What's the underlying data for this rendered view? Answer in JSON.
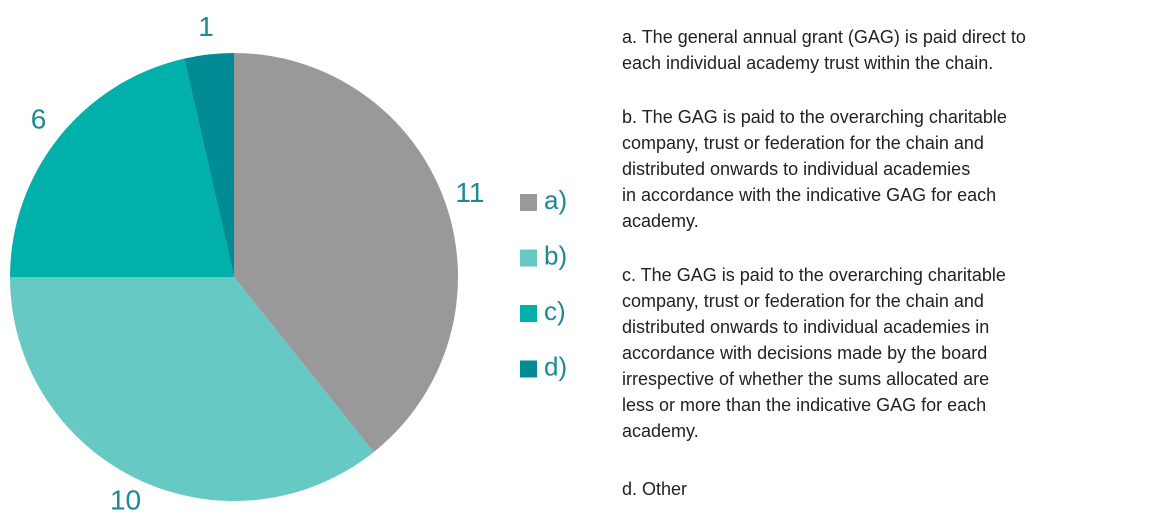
{
  "chart_data": {
    "type": "pie",
    "categories": [
      "a)",
      "b)",
      "c)",
      "d)"
    ],
    "values": [
      11,
      10,
      6,
      1
    ],
    "colors": [
      "#999999",
      "#66c9c4",
      "#00b0aa",
      "#008b95"
    ],
    "legend": "right"
  },
  "notes": [
    [
      "a. The general annual grant (GAG) is paid direct to",
      "each individual academy trust within the chain."
    ],
    [
      "b. The GAG is paid to the overarching charitable",
      "company, trust or federation for the chain and",
      "distributed onwards to individual academies",
      "in accordance with the indicative GAG for each",
      "academy."
    ],
    [
      "c. The GAG is paid to the overarching charitable",
      "company, trust or federation for the chain and",
      "distributed onwards to individual academies in",
      "accordance with decisions made by the board",
      "irrespective of whether the sums allocated are",
      "less or more than the indicative GAG for each",
      "academy."
    ],
    [
      "d. Other"
    ]
  ]
}
